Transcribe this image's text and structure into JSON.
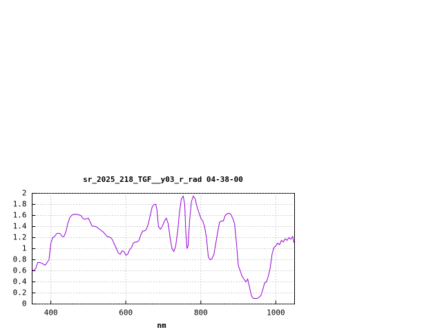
{
  "chart_data": {
    "type": "line",
    "title": "sr_2025_218_TGF__y03_r_rad 04-38-00",
    "x_label": "nm",
    "xlim": [
      350,
      1050
    ],
    "xticks": [
      400,
      600,
      800,
      1000
    ],
    "ylim": [
      0,
      2
    ],
    "yticks": [
      0,
      0.2,
      0.4,
      0.6,
      0.8,
      1,
      1.2,
      1.4,
      1.6,
      1.8,
      2
    ],
    "grid": true,
    "x": [
      350,
      355,
      360,
      365,
      370,
      375,
      380,
      385,
      390,
      395,
      400,
      405,
      410,
      415,
      420,
      425,
      430,
      435,
      440,
      445,
      450,
      455,
      460,
      470,
      480,
      485,
      490,
      500,
      505,
      510,
      520,
      530,
      540,
      550,
      560,
      565,
      570,
      575,
      580,
      585,
      590,
      595,
      600,
      605,
      610,
      615,
      620,
      625,
      630,
      635,
      640,
      645,
      650,
      655,
      660,
      665,
      670,
      675,
      680,
      683,
      687,
      692,
      697,
      703,
      708,
      713,
      718,
      723,
      728,
      733,
      738,
      743,
      748,
      753,
      757,
      760,
      763,
      766,
      770,
      775,
      780,
      785,
      790,
      795,
      800,
      805,
      810,
      815,
      820,
      825,
      830,
      835,
      840,
      845,
      850,
      855,
      860,
      865,
      870,
      875,
      880,
      885,
      890,
      895,
      900,
      905,
      910,
      915,
      920,
      925,
      930,
      935,
      940,
      945,
      950,
      955,
      960,
      965,
      970,
      975,
      980,
      985,
      990,
      995,
      1000,
      1005,
      1010,
      1015,
      1020,
      1025,
      1030,
      1035,
      1040,
      1045,
      1048,
      1050
    ],
    "series": [
      {
        "color": "#9400d3",
        "values": [
          0.62,
          0.6,
          0.65,
          0.75,
          0.75,
          0.74,
          0.72,
          0.7,
          0.75,
          0.8,
          1.1,
          1.2,
          1.22,
          1.27,
          1.28,
          1.27,
          1.22,
          1.22,
          1.3,
          1.45,
          1.55,
          1.6,
          1.62,
          1.62,
          1.6,
          1.55,
          1.53,
          1.55,
          1.48,
          1.41,
          1.4,
          1.35,
          1.3,
          1.22,
          1.2,
          1.15,
          1.07,
          1.0,
          0.92,
          0.9,
          0.96,
          0.95,
          0.88,
          0.9,
          0.98,
          1.02,
          1.1,
          1.12,
          1.12,
          1.15,
          1.25,
          1.32,
          1.32,
          1.35,
          1.45,
          1.6,
          1.75,
          1.8,
          1.8,
          1.7,
          1.4,
          1.35,
          1.4,
          1.5,
          1.55,
          1.45,
          1.2,
          1.0,
          0.95,
          1.05,
          1.3,
          1.65,
          1.9,
          1.95,
          1.8,
          1.3,
          1.0,
          1.05,
          1.5,
          1.85,
          1.95,
          1.9,
          1.75,
          1.65,
          1.55,
          1.5,
          1.4,
          1.2,
          0.85,
          0.8,
          0.82,
          0.9,
          1.1,
          1.3,
          1.48,
          1.5,
          1.5,
          1.6,
          1.63,
          1.64,
          1.62,
          1.55,
          1.45,
          1.1,
          0.7,
          0.6,
          0.5,
          0.45,
          0.4,
          0.45,
          0.3,
          0.15,
          0.1,
          0.1,
          0.1,
          0.12,
          0.15,
          0.25,
          0.38,
          0.4,
          0.5,
          0.65,
          0.9,
          1.02,
          1.05,
          1.1,
          1.07,
          1.15,
          1.12,
          1.18,
          1.15,
          1.2,
          1.17,
          1.22,
          1.12,
          1.15
        ]
      }
    ]
  }
}
